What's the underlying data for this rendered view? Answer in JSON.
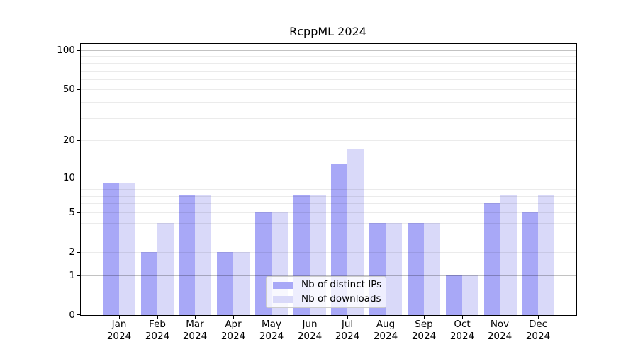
{
  "title": "RcppML 2024",
  "chart_data": {
    "type": "bar",
    "title": "RcppML 2024",
    "categories": [
      "Jan 2024",
      "Feb 2024",
      "Mar 2024",
      "Apr 2024",
      "May 2024",
      "Jun 2024",
      "Jul 2024",
      "Aug 2024",
      "Sep 2024",
      "Oct 2024",
      "Nov 2024",
      "Dec 2024"
    ],
    "x": {
      "months": [
        "Jan",
        "Feb",
        "Mar",
        "Apr",
        "May",
        "Jun",
        "Jul",
        "Aug",
        "Sep",
        "Oct",
        "Nov",
        "Dec"
      ],
      "year": "2024"
    },
    "series": [
      {
        "name": "Nb of distinct IPs",
        "key": "distinct-ips",
        "color": "#a8a8f7",
        "values": [
          9,
          2,
          7,
          2,
          5,
          7,
          13,
          4,
          4,
          1,
          6,
          5
        ]
      },
      {
        "name": "Nb of downloads",
        "key": "downloads",
        "color": "#d9d9f9",
        "values": [
          9,
          4,
          7,
          2,
          5,
          7,
          17,
          4,
          4,
          1,
          7,
          7
        ]
      }
    ],
    "y_axis": {
      "scale": "log1p",
      "tick_labels": [
        0,
        1,
        2,
        5,
        10,
        20,
        50,
        100
      ],
      "major_gridlines": [
        1,
        10,
        100
      ],
      "minor_gridlines": [
        2,
        3,
        4,
        5,
        6,
        7,
        8,
        9,
        20,
        30,
        40,
        50,
        60,
        70,
        80,
        90
      ],
      "ylim": [
        0,
        113
      ]
    },
    "legend": {
      "position": "bottom-center"
    },
    "grid": true
  },
  "colors": {
    "bar_distinct_ips": "#a8a8f7",
    "bar_downloads": "#d9d9f9",
    "grid_major": "rgba(0,0,0,0.24)",
    "grid_minor": "rgba(0,0,0,0.08)",
    "axis": "#000000",
    "legend_border": "#cccccc",
    "legend_bg": "rgba(255,255,255,0.8)"
  }
}
